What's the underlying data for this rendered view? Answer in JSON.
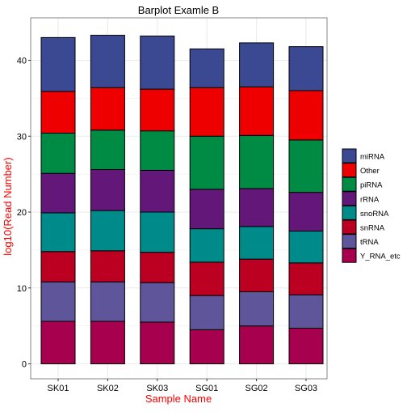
{
  "chart_data": {
    "type": "bar",
    "stacked": true,
    "title": "Barplot Examle B",
    "xlabel": "Sample Name",
    "ylabel": "log10(Read Number)",
    "ylim": [
      0,
      45
    ],
    "yticks": [
      0,
      10,
      20,
      30,
      40
    ],
    "grid": true,
    "legend_position": "right",
    "categories": [
      "SK01",
      "SK02",
      "SK03",
      "SG01",
      "SG02",
      "SG03"
    ],
    "series": [
      {
        "name": "Y_RNA_etc",
        "color": "#A6004F",
        "values": [
          5.6,
          5.6,
          5.5,
          4.5,
          5.0,
          4.7
        ]
      },
      {
        "name": "tRNA",
        "color": "#5F559B",
        "values": [
          5.2,
          5.2,
          5.2,
          4.5,
          4.5,
          4.4
        ]
      },
      {
        "name": "snRNA",
        "color": "#BB0021",
        "values": [
          4.0,
          4.1,
          4.0,
          4.4,
          4.3,
          4.2
        ]
      },
      {
        "name": "snoRNA",
        "color": "#008B8B",
        "values": [
          5.1,
          5.3,
          5.3,
          4.4,
          4.3,
          4.2
        ]
      },
      {
        "name": "rRNA",
        "color": "#631879",
        "values": [
          5.2,
          5.4,
          5.5,
          5.2,
          5.0,
          5.1
        ]
      },
      {
        "name": "piRNA",
        "color": "#008B45",
        "values": [
          5.3,
          5.2,
          5.2,
          7.0,
          7.0,
          6.9
        ]
      },
      {
        "name": "Other",
        "color": "#EE0000",
        "values": [
          5.5,
          5.6,
          5.5,
          6.4,
          6.4,
          6.5
        ]
      },
      {
        "name": "miRNA",
        "color": "#3B4992",
        "values": [
          7.1,
          6.9,
          7.0,
          5.1,
          5.8,
          5.8
        ]
      }
    ]
  },
  "colors": {
    "axis_title": "#FF0000",
    "title": "#000000",
    "tick_label": "#000000",
    "panel_background": "#FFFFFF",
    "grid": "#EBEBEB",
    "panel_border": "#333333"
  }
}
